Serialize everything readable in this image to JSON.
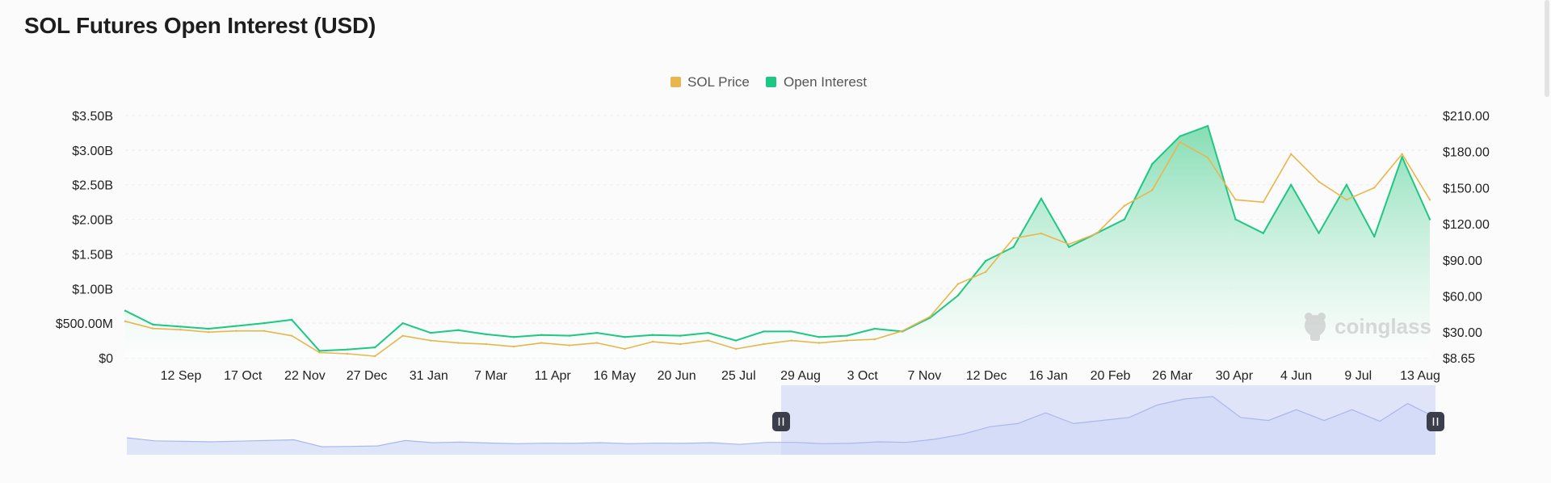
{
  "page": {
    "title": "SOL Futures Open Interest (USD)"
  },
  "colors": {
    "price": "#e8b64c",
    "open_interest": "#1fc784",
    "oi_fill_top": "#7fdcb0",
    "navigator_fill": "#dfe5f8",
    "navigator_line": "#a9b8ec",
    "navigator_selection": "#cdd6f6"
  },
  "watermark": {
    "text": "coinglass",
    "icon": "coinglass-logo-icon"
  },
  "navigator": {
    "handle_icon": "pause-handle-icon",
    "selection_start": 0.5,
    "selection_end": 1.0
  },
  "chart_data": {
    "type": "line",
    "title": "SOL Futures Open Interest (USD)",
    "legend": {
      "position": "top-center",
      "entries": [
        "SOL Price",
        "Open Interest"
      ]
    },
    "x_ticks": [
      "12 Sep",
      "17 Oct",
      "22 Nov",
      "27 Dec",
      "31 Jan",
      "7 Mar",
      "11 Apr",
      "16 May",
      "20 Jun",
      "25 Jul",
      "29 Aug",
      "3 Oct",
      "7 Nov",
      "12 Dec",
      "16 Jan",
      "20 Feb",
      "26 Mar",
      "30 Apr",
      "4 Jun",
      "9 Jul",
      "13 Aug"
    ],
    "y_left": {
      "range": [
        0,
        3.5
      ],
      "unit": "billion USD",
      "ticks": [
        0,
        0.5,
        1.0,
        1.5,
        2.0,
        2.5,
        3.0,
        3.5
      ],
      "tick_labels": [
        "$0",
        "$500.00M",
        "$1.00B",
        "$1.50B",
        "$2.00B",
        "$2.50B",
        "$3.00B",
        "$3.50B"
      ]
    },
    "y_right": {
      "range": [
        8.65,
        210
      ],
      "ticks": [
        8.65,
        30,
        60,
        90,
        120,
        150,
        180,
        210
      ],
      "tick_labels": [
        "$8.65",
        "$30.00",
        "$60.00",
        "$90.00",
        "$120.00",
        "$150.00",
        "$180.00",
        "$210.00"
      ]
    },
    "grid": true,
    "series": [
      {
        "name": "Open Interest",
        "type": "area",
        "axis": "left",
        "values": [
          0.68,
          0.48,
          0.45,
          0.42,
          0.46,
          0.5,
          0.55,
          0.1,
          0.12,
          0.15,
          0.5,
          0.36,
          0.4,
          0.34,
          0.3,
          0.33,
          0.32,
          0.36,
          0.3,
          0.33,
          0.32,
          0.36,
          0.25,
          0.38,
          0.38,
          0.3,
          0.32,
          0.42,
          0.38,
          0.58,
          0.9,
          1.4,
          1.6,
          2.3,
          1.6,
          1.8,
          2.0,
          2.8,
          3.2,
          3.35,
          2.0,
          1.8,
          2.5,
          1.8,
          2.5,
          1.75,
          2.9,
          2.0
        ]
      },
      {
        "name": "SOL Price",
        "type": "line",
        "axis": "right",
        "values": [
          39,
          33,
          32,
          30,
          31,
          31,
          27,
          13,
          12,
          10,
          27,
          23,
          21,
          20,
          18,
          21,
          19,
          21,
          16,
          22,
          20,
          23,
          16,
          20,
          23,
          21,
          23,
          24,
          31,
          43,
          70,
          80,
          108,
          112,
          103,
          112,
          135,
          148,
          188,
          175,
          140,
          138,
          178,
          155,
          140,
          150,
          178,
          140
        ]
      }
    ]
  }
}
